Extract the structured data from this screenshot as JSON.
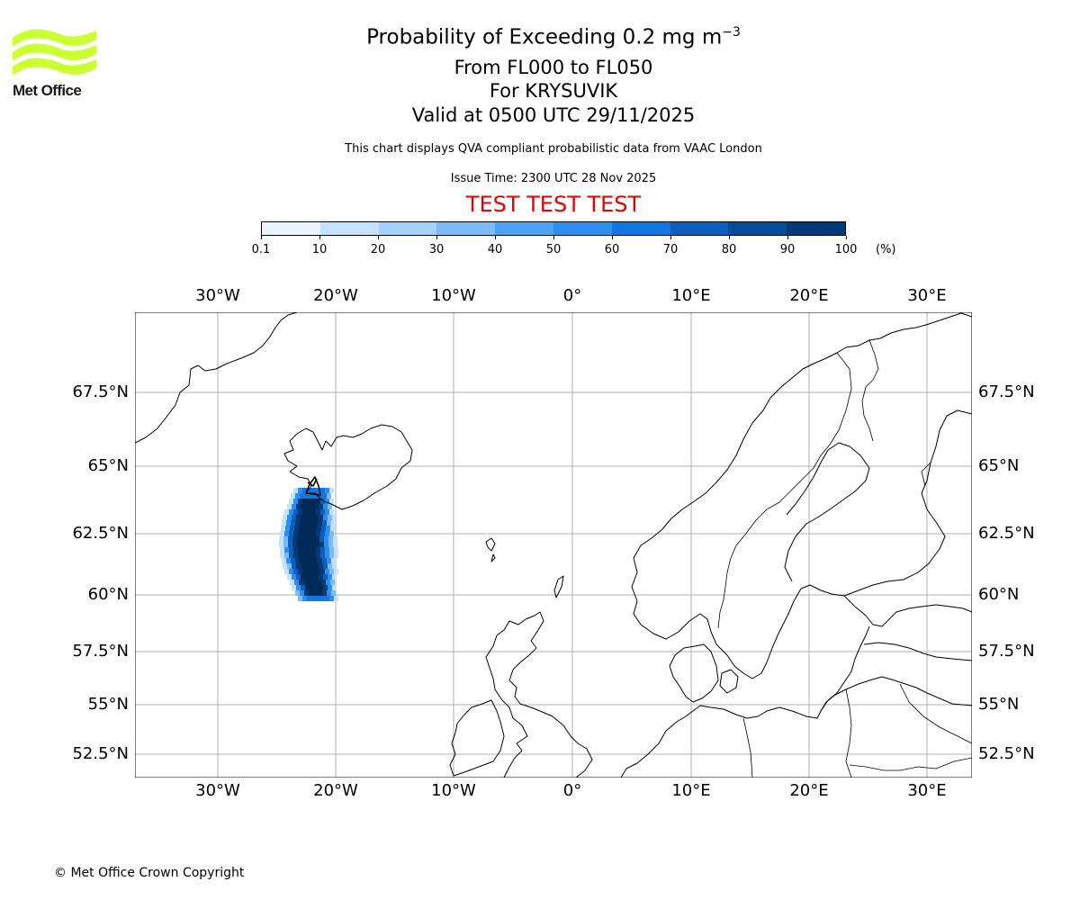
{
  "logo": {
    "text": "Met Office",
    "color": "#ccff33"
  },
  "title": {
    "main_prefix": "Probability of Exceeding 0.2 mg m",
    "main_exponent": "−3",
    "flight_levels": "From FL000 to FL050",
    "volcano": "For KRYSUVIK",
    "valid": "Valid at 0500 UTC 29/11/2025",
    "info": "This chart displays QVA compliant probabilistic data from VAAC London",
    "issue": "Issue Time: 2300 UTC 28 Nov 2025",
    "test": "TEST TEST TEST"
  },
  "colorbar": {
    "ticks": [
      "0.1",
      "10",
      "20",
      "30",
      "40",
      "50",
      "60",
      "70",
      "80",
      "90",
      "100"
    ],
    "unit": "(%)",
    "colors": [
      "#eaf4fe",
      "#c5e2fb",
      "#a3d1f9",
      "#7bbcf7",
      "#4ca3f4",
      "#2c8ff0",
      "#1376de",
      "#0c5fbd",
      "#074c99",
      "#043a78",
      "#022a58"
    ]
  },
  "axes": {
    "lon_labels": [
      "30°W",
      "20°W",
      "10°W",
      "0°",
      "10°E",
      "20°E",
      "30°E"
    ],
    "lat_labels": [
      "67.5°N",
      "65°N",
      "62.5°N",
      "60°N",
      "57.5°N",
      "55°N",
      "52.5°N"
    ]
  },
  "plume": {
    "description_levels": [
      10,
      30,
      50,
      70,
      90,
      100
    ]
  },
  "copyright": "© Met Office Crown Copyright"
}
